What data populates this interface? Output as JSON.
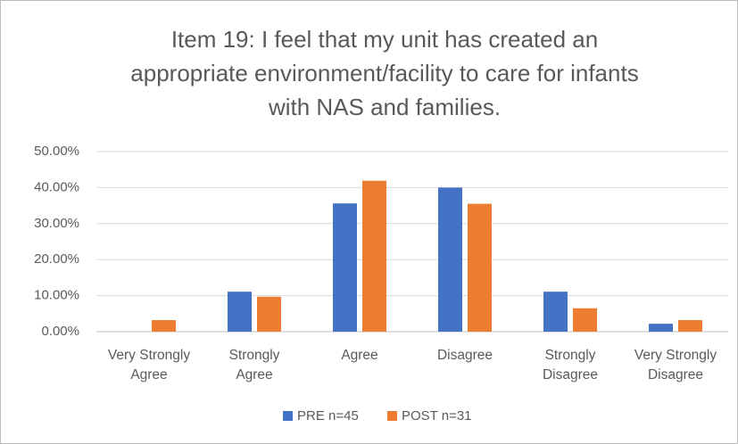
{
  "chart_data": {
    "type": "bar",
    "title": "Item 19: I feel that my unit has created an appropriate environment/facility to care for infants with NAS and families.",
    "categories": [
      "Very Strongly\nAgree",
      "Strongly\nAgree",
      "Agree",
      "Disagree",
      "Strongly\nDisagree",
      "Very Strongly\nDisagree"
    ],
    "series": [
      {
        "name": "PRE n=45",
        "color": "#4472c4",
        "values": [
          0,
          11.1,
          35.6,
          40.0,
          11.1,
          2.2
        ]
      },
      {
        "name": "POST n=31",
        "color": "#ed7d31",
        "values": [
          3.2,
          9.7,
          41.9,
          35.5,
          6.5,
          3.2
        ]
      }
    ],
    "ylim": [
      0,
      50
    ],
    "yticks": [
      {
        "value": 0,
        "label": "0.00%"
      },
      {
        "value": 10,
        "label": "10.00%"
      },
      {
        "value": 20,
        "label": "20.00%"
      },
      {
        "value": 30,
        "label": "30.00%"
      },
      {
        "value": 40,
        "label": "40.00%"
      },
      {
        "value": 50,
        "label": "50.00%"
      }
    ],
    "grid": true,
    "legend": "bottom"
  }
}
